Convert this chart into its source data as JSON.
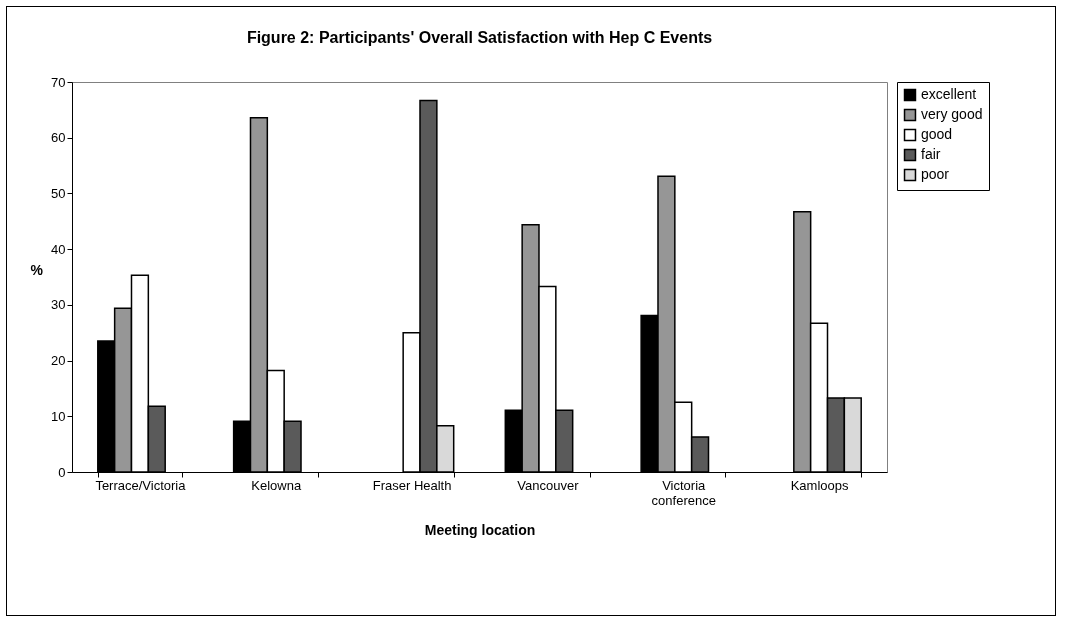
{
  "chart_data": {
    "type": "bar",
    "title": "Figure 2: Participants' Overall Satisfaction with Hep C Events",
    "xlabel": "Meeting location",
    "ylabel": "%",
    "categories": [
      "Terrace/Victoria",
      "Kelowna",
      "Fraser Health",
      "Vancouver",
      "Victoria conference",
      "Kamloops"
    ],
    "series": [
      {
        "name": "excellent",
        "color": "#000000",
        "values": [
          23.5,
          9.1,
          null,
          11.1,
          28.1,
          null
        ]
      },
      {
        "name": "very good",
        "color": "#969696",
        "values": [
          29.4,
          63.6,
          null,
          44.4,
          53.1,
          46.7
        ]
      },
      {
        "name": "good",
        "color": "#ffffff",
        "values": [
          35.3,
          18.2,
          25,
          33.3,
          12.5,
          26.7
        ]
      },
      {
        "name": "fair",
        "color": "#5a5a5a",
        "values": [
          11.8,
          9.1,
          66.7,
          11.1,
          6.3,
          13.3
        ]
      },
      {
        "name": "poor",
        "color": "#d9d9d9",
        "values": [
          null,
          null,
          8.3,
          null,
          null,
          13.3
        ]
      }
    ],
    "ylim": [
      0,
      70
    ],
    "yticks": [
      0,
      10,
      20,
      30,
      40,
      50,
      60,
      70
    ],
    "grid": false,
    "legend": "right"
  }
}
